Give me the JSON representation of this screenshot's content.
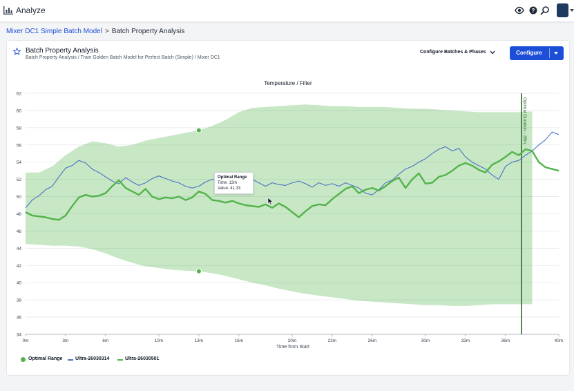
{
  "header": {
    "app_title": "Analyze",
    "icons": [
      "bar-chart-icon",
      "eye-icon",
      "help-icon",
      "search-icon"
    ]
  },
  "breadcrumb": {
    "parent": "Mixer DC1 Simple Batch Model",
    "separator": ">",
    "current": "Batch Property Analysis"
  },
  "card": {
    "title": "Batch Property Analysis",
    "subtitle": "Batch Property Analysis / Train Golden Batch Model for Perfect Batch (Simple) / Mixer DC1",
    "configure_batches_label": "Configure Batches & Phases",
    "configure_label": "Configure"
  },
  "tooltip": {
    "title": "Optimal Range",
    "time": "Time: 13m",
    "value": "Value: 41.33"
  },
  "legend": [
    {
      "label": "Optimal Range",
      "color": "#52b34a",
      "kind": "dot"
    },
    {
      "label": "Ultra-26030314",
      "color": "#4a72c4",
      "kind": "line"
    },
    {
      "label": "Ultra-26030501",
      "color": "#52b34a",
      "kind": "line"
    }
  ],
  "chart_data": {
    "type": "line",
    "title": "Temperature / Filter",
    "xlabel": "Time from Start",
    "ylabel": "",
    "xlim": [
      0,
      40
    ],
    "ylim": [
      34,
      62
    ],
    "xticks": [
      "0m",
      "3m",
      "6m",
      "10m",
      "13m",
      "16m",
      "20m",
      "23m",
      "26m",
      "30m",
      "33m",
      "36m",
      "40m"
    ],
    "xtick_values": [
      0,
      3,
      6,
      10,
      13,
      16,
      20,
      23,
      26,
      30,
      33,
      36,
      40
    ],
    "yticks": [
      62,
      60,
      58,
      56,
      54,
      52,
      50,
      48,
      46,
      44,
      42,
      40,
      38,
      36,
      34
    ],
    "grid": true,
    "marker_label": "Optimal Duration - 38m",
    "marker_x": 37.2,
    "range_points": [
      {
        "x": 13,
        "y": 57.7
      },
      {
        "x": 13,
        "y": 41.33
      }
    ],
    "series": [
      {
        "name": "Optimal Range",
        "kind": "band",
        "x": [
          0,
          1,
          2,
          3,
          4,
          5,
          6,
          7,
          8,
          9,
          10,
          11,
          12,
          13,
          14,
          15,
          16,
          17,
          18,
          19,
          20,
          21,
          22,
          23,
          24,
          25,
          26,
          27,
          28,
          29,
          30,
          31,
          32,
          33,
          34,
          35,
          36,
          37,
          38
        ],
        "upper": [
          52.8,
          52.8,
          53.5,
          54.8,
          55.8,
          56.4,
          56.2,
          55.8,
          56.0,
          56.5,
          56.8,
          57.1,
          57.4,
          57.7,
          58.2,
          58.9,
          59.8,
          60.3,
          60.4,
          60.5,
          60.6,
          60.7,
          60.6,
          60.5,
          60.5,
          60.4,
          60.4,
          60.4,
          60.3,
          60.2,
          60.2,
          60.1,
          60.0,
          59.9,
          59.8,
          59.8,
          59.8,
          59.8,
          59.9
        ],
        "lower": [
          44.5,
          44.4,
          44.3,
          44.3,
          44.2,
          43.9,
          43.4,
          42.8,
          42.3,
          41.9,
          41.7,
          41.5,
          41.4,
          41.33,
          41.1,
          40.8,
          40.4,
          40.0,
          39.7,
          39.3,
          39.0,
          38.7,
          38.5,
          38.3,
          38.1,
          37.9,
          37.8,
          37.7,
          37.6,
          37.5,
          37.4,
          37.4,
          37.3,
          37.3,
          37.4,
          37.5,
          37.5,
          37.5,
          37.5
        ]
      },
      {
        "name": "Ultra-26030314",
        "x": [
          0,
          0.5,
          1,
          1.5,
          2,
          2.5,
          3,
          3.5,
          4,
          4.5,
          5,
          5.5,
          6,
          6.5,
          7,
          7.5,
          8,
          8.5,
          9,
          9.5,
          10,
          10.5,
          11,
          11.5,
          12,
          12.5,
          13,
          13.5,
          14,
          14.5,
          15,
          15.5,
          16,
          16.5,
          17,
          17.5,
          18,
          18.5,
          19,
          19.5,
          20,
          20.5,
          21,
          21.5,
          22,
          22.5,
          23,
          23.5,
          24,
          24.5,
          25,
          25.5,
          26,
          26.5,
          27,
          27.5,
          28,
          28.5,
          29,
          29.5,
          30,
          30.5,
          31,
          31.5,
          32,
          32.5,
          33,
          33.5,
          34,
          34.5,
          35,
          35.5,
          36,
          36.5,
          37,
          37.5,
          38,
          38.5,
          39,
          39.5,
          40
        ],
        "y": [
          48.7,
          49.6,
          50.1,
          50.8,
          51.2,
          52.3,
          53.3,
          53.6,
          54.2,
          53.9,
          53.2,
          52.8,
          52.3,
          51.8,
          51.5,
          52.2,
          51.7,
          51.3,
          51.6,
          52.1,
          52.4,
          52.1,
          51.8,
          51.6,
          51.2,
          51.0,
          51.2,
          51.7,
          52.0,
          51.8,
          52.2,
          51.9,
          52.5,
          52.3,
          52.0,
          51.6,
          51.2,
          51.6,
          51.4,
          51.3,
          51.6,
          51.8,
          51.5,
          51.1,
          51.6,
          51.3,
          51.5,
          51.2,
          51.6,
          51.3,
          51.0,
          50.4,
          50.2,
          50.8,
          51.6,
          51.9,
          52.6,
          53.2,
          53.5,
          54.0,
          54.4,
          55.0,
          55.5,
          55.8,
          55.3,
          55.6,
          54.6,
          54.0,
          53.6,
          53.2,
          52.5,
          52.0,
          53.5,
          54.0,
          54.2,
          54.8,
          55.3,
          56.0,
          56.6,
          57.5,
          57.2
        ]
      },
      {
        "name": "Ultra-26030501",
        "x": [
          0,
          0.5,
          1,
          1.5,
          2,
          2.5,
          3,
          3.5,
          4,
          4.5,
          5,
          5.5,
          6,
          6.5,
          7,
          7.5,
          8,
          8.5,
          9,
          9.5,
          10,
          10.5,
          11,
          11.5,
          12,
          12.5,
          13,
          13.5,
          14,
          14.5,
          15,
          15.5,
          16,
          16.5,
          17,
          17.5,
          18,
          18.5,
          19,
          19.5,
          20,
          20.5,
          21,
          21.5,
          22,
          22.5,
          23,
          23.5,
          24,
          24.5,
          25,
          25.5,
          26,
          26.5,
          27,
          27.5,
          28,
          28.5,
          29,
          29.5,
          30,
          30.5,
          31,
          31.5,
          32,
          32.5,
          33,
          33.5,
          34,
          34.5,
          35,
          35.5,
          36,
          36.5,
          37,
          37.5,
          38,
          38.5,
          39,
          39.5,
          40
        ],
        "y": [
          48.2,
          47.8,
          47.7,
          47.6,
          47.4,
          47.3,
          47.8,
          48.9,
          49.9,
          50.2,
          50.0,
          50.1,
          50.4,
          51.2,
          51.9,
          51.0,
          50.6,
          50.2,
          50.9,
          50.0,
          49.7,
          49.9,
          49.8,
          50.0,
          49.6,
          49.9,
          50.6,
          50.3,
          49.6,
          49.5,
          49.3,
          49.5,
          49.2,
          49.0,
          48.9,
          48.8,
          49.1,
          48.7,
          49.2,
          48.8,
          48.2,
          47.6,
          48.3,
          48.9,
          49.1,
          49.0,
          49.7,
          50.3,
          50.9,
          51.2,
          50.4,
          50.8,
          51.0,
          50.7,
          51.2,
          51.8,
          52.2,
          51.0,
          52.0,
          52.7,
          51.5,
          51.6,
          52.3,
          52.5,
          53.0,
          53.6,
          53.9,
          53.6,
          53.1,
          52.8,
          53.7,
          54.1,
          54.6,
          55.2,
          54.8,
          55.5,
          55.3,
          54.0,
          53.4,
          53.2,
          53.0
        ]
      }
    ]
  }
}
